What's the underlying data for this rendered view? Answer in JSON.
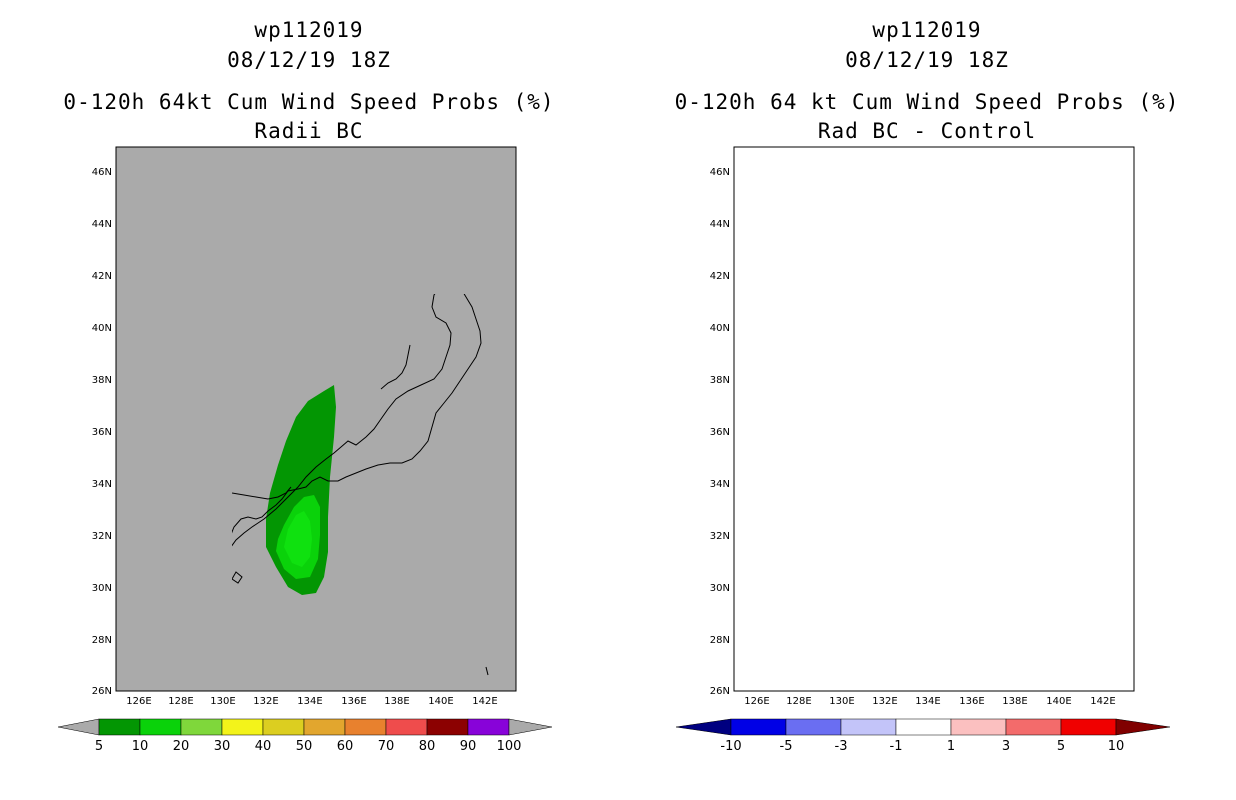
{
  "left_panel": {
    "storm_id": "wp112019",
    "datetime": "08/12/19 18Z",
    "title": "0-120h 64kt Cum Wind Speed Probs (%)",
    "subtitle": "Radii BC",
    "background_color": "#aaaaaa",
    "colorbar": {
      "labels": [
        "5",
        "10",
        "20",
        "30",
        "40",
        "50",
        "60",
        "70",
        "80",
        "90",
        "100"
      ],
      "colors": [
        "#039603",
        "#0ad20a",
        "#7fd73b",
        "#f3f31a",
        "#dcce20",
        "#e2a62e",
        "#e8812e",
        "#ef4c4c",
        "#8c0101",
        "#8803d9"
      ]
    }
  },
  "right_panel": {
    "storm_id": "wp112019",
    "datetime": "08/12/19 18Z",
    "title": "0-120h 64 kt Cum Wind Speed Probs (%)",
    "subtitle": "Rad BC - Control",
    "background_color": "#ffffff",
    "colorbar": {
      "labels": [
        "-10",
        "-5",
        "-3",
        "-1",
        "1",
        "3",
        "5",
        "10"
      ],
      "colors": [
        "#0000e6",
        "#6a6ef2",
        "#c3c4f9",
        "#ffffff",
        "#fbc0c0",
        "#f36b6b",
        "#f00000"
      ]
    }
  },
  "axes": {
    "lat_labels": [
      "46N",
      "44N",
      "42N",
      "40N",
      "38N",
      "36N",
      "34N",
      "32N",
      "30N",
      "28N",
      "26N"
    ],
    "lon_labels": [
      "126E",
      "128E",
      "130E",
      "132E",
      "134E",
      "136E",
      "138E",
      "140E",
      "142E"
    ]
  }
}
